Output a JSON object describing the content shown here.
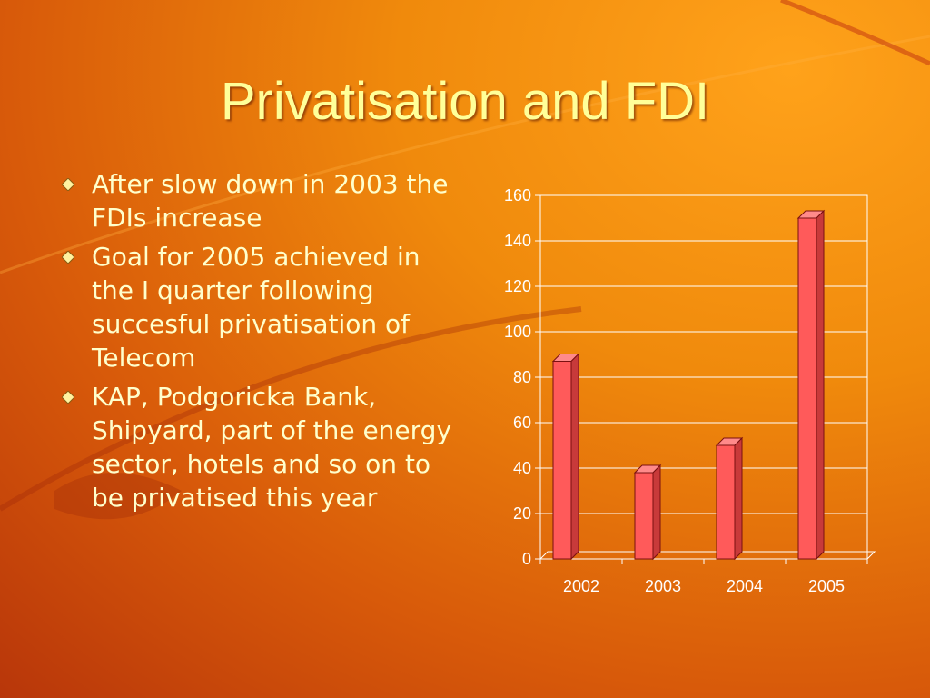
{
  "slide": {
    "title": "Privatisation and FDI",
    "bullets": [
      "After slow down in 2003 the FDIs increase",
      "Goal for 2005 achieved in the I quarter following succesful privatisation of Telecom",
      "KAP, Podgoricka Bank, Shipyard, part of the energy sector, hotels and so on to be privatised this year"
    ],
    "bullet_icon": "diamond-bullet-icon"
  },
  "colors": {
    "title": "#ffff99",
    "text": "#ffffcc",
    "bar": "#ff5a5a",
    "grid": "#ffffff"
  },
  "chart_data": {
    "type": "bar",
    "categories": [
      "2002",
      "2003",
      "2004",
      "2005"
    ],
    "values": [
      87,
      38,
      50,
      150
    ],
    "ylim": [
      0,
      160
    ],
    "yticks": [
      "0",
      "20",
      "40",
      "60",
      "80",
      "100",
      "120",
      "140",
      "160"
    ],
    "grid": true,
    "title": "",
    "xlabel": "",
    "ylabel": ""
  }
}
